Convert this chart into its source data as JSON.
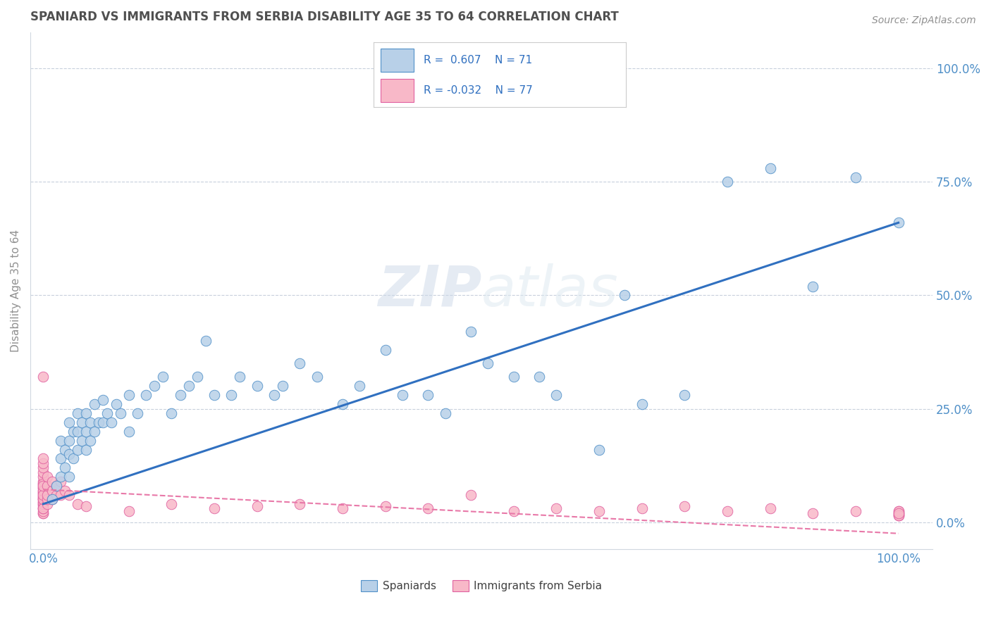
{
  "title": "SPANIARD VS IMMIGRANTS FROM SERBIA DISABILITY AGE 35 TO 64 CORRELATION CHART",
  "source_text": "Source: ZipAtlas.com",
  "ylabel": "Disability Age 35 to 64",
  "R_spaniards": 0.607,
  "N_spaniards": 71,
  "R_serbia": -0.032,
  "N_serbia": 77,
  "spaniard_fill": "#b8d0e8",
  "spaniard_edge": "#5090c8",
  "serbia_fill": "#f8b8c8",
  "serbia_edge": "#e060a0",
  "spaniard_line_color": "#3070c0",
  "serbia_line_color": "#e878a8",
  "background_color": "#ffffff",
  "grid_color": "#c8d0dc",
  "title_color": "#505050",
  "axis_label_color": "#5090c8",
  "legend_text_color": "#3070c0",
  "watermark_color": "#dde8f0",
  "spaniards_x": [
    0.01,
    0.015,
    0.02,
    0.02,
    0.02,
    0.025,
    0.025,
    0.03,
    0.03,
    0.03,
    0.03,
    0.035,
    0.035,
    0.04,
    0.04,
    0.04,
    0.045,
    0.045,
    0.05,
    0.05,
    0.05,
    0.055,
    0.055,
    0.06,
    0.06,
    0.065,
    0.07,
    0.07,
    0.075,
    0.08,
    0.085,
    0.09,
    0.1,
    0.1,
    0.11,
    0.12,
    0.13,
    0.14,
    0.15,
    0.16,
    0.17,
    0.18,
    0.19,
    0.2,
    0.22,
    0.23,
    0.25,
    0.27,
    0.28,
    0.3,
    0.32,
    0.35,
    0.37,
    0.4,
    0.42,
    0.45,
    0.47,
    0.5,
    0.52,
    0.55,
    0.58,
    0.6,
    0.65,
    0.68,
    0.7,
    0.75,
    0.8,
    0.85,
    0.9,
    0.95,
    1.0
  ],
  "spaniards_y": [
    0.05,
    0.08,
    0.1,
    0.14,
    0.18,
    0.12,
    0.16,
    0.1,
    0.15,
    0.18,
    0.22,
    0.14,
    0.2,
    0.16,
    0.2,
    0.24,
    0.18,
    0.22,
    0.16,
    0.2,
    0.24,
    0.18,
    0.22,
    0.2,
    0.26,
    0.22,
    0.22,
    0.27,
    0.24,
    0.22,
    0.26,
    0.24,
    0.2,
    0.28,
    0.24,
    0.28,
    0.3,
    0.32,
    0.24,
    0.28,
    0.3,
    0.32,
    0.4,
    0.28,
    0.28,
    0.32,
    0.3,
    0.28,
    0.3,
    0.35,
    0.32,
    0.26,
    0.3,
    0.38,
    0.28,
    0.28,
    0.24,
    0.42,
    0.35,
    0.32,
    0.32,
    0.28,
    0.16,
    0.5,
    0.26,
    0.28,
    0.75,
    0.78,
    0.52,
    0.76,
    0.66
  ],
  "serbia_x": [
    0.0,
    0.0,
    0.0,
    0.0,
    0.0,
    0.0,
    0.0,
    0.0,
    0.0,
    0.0,
    0.0,
    0.0,
    0.0,
    0.0,
    0.0,
    0.0,
    0.0,
    0.0,
    0.0,
    0.0,
    0.0,
    0.0,
    0.0,
    0.0,
    0.0,
    0.0,
    0.0,
    0.0,
    0.0,
    0.0,
    0.0,
    0.0,
    0.0,
    0.0,
    0.0,
    0.005,
    0.005,
    0.005,
    0.005,
    0.005,
    0.01,
    0.01,
    0.01,
    0.015,
    0.015,
    0.02,
    0.02,
    0.025,
    0.03,
    0.04,
    0.05,
    0.1,
    0.15,
    0.2,
    0.25,
    0.3,
    0.35,
    0.4,
    0.45,
    0.5,
    0.55,
    0.6,
    0.65,
    0.7,
    0.75,
    0.8,
    0.85,
    0.9,
    0.95,
    1.0,
    1.0,
    1.0,
    1.0,
    1.0,
    1.0,
    1.0,
    1.0
  ],
  "serbia_y": [
    0.02,
    0.03,
    0.04,
    0.045,
    0.05,
    0.055,
    0.06,
    0.065,
    0.07,
    0.075,
    0.08,
    0.085,
    0.09,
    0.1,
    0.11,
    0.12,
    0.13,
    0.14,
    0.02,
    0.025,
    0.03,
    0.035,
    0.04,
    0.045,
    0.05,
    0.055,
    0.065,
    0.075,
    0.085,
    0.32,
    0.03,
    0.05,
    0.07,
    0.06,
    0.08,
    0.04,
    0.05,
    0.06,
    0.08,
    0.1,
    0.05,
    0.07,
    0.09,
    0.06,
    0.08,
    0.06,
    0.09,
    0.07,
    0.06,
    0.04,
    0.035,
    0.025,
    0.04,
    0.03,
    0.035,
    0.04,
    0.03,
    0.035,
    0.03,
    0.06,
    0.025,
    0.03,
    0.025,
    0.03,
    0.035,
    0.025,
    0.03,
    0.02,
    0.025,
    0.015,
    0.02,
    0.025,
    0.015,
    0.02,
    0.025,
    0.015,
    0.02
  ],
  "ytick_labels": [
    "0.0%",
    "25.0%",
    "50.0%",
    "75.0%",
    "100.0%"
  ],
  "ytick_values": [
    0.0,
    0.25,
    0.5,
    0.75,
    1.0
  ],
  "xtick_labels": [
    "0.0%",
    "100.0%"
  ],
  "xtick_values": [
    0.0,
    1.0
  ],
  "xlim": [
    -0.015,
    1.04
  ],
  "ylim": [
    -0.06,
    1.08
  ],
  "blue_line_x0": 0.0,
  "blue_line_y0": 0.04,
  "blue_line_x1": 1.0,
  "blue_line_y1": 0.66,
  "pink_line_x0": 0.0,
  "pink_line_y0": 0.072,
  "pink_line_x1": 1.0,
  "pink_line_y1": -0.025
}
